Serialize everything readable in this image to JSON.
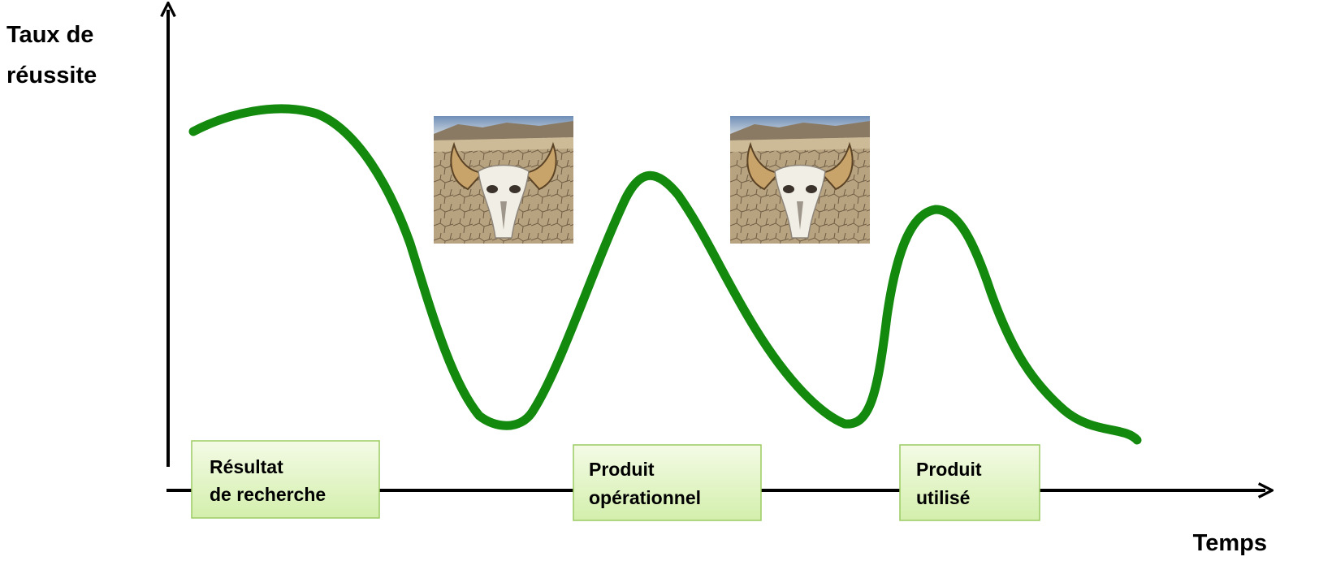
{
  "y_axis": {
    "label_lines": [
      "Taux de",
      "réussite"
    ]
  },
  "x_axis": {
    "label": "Temps"
  },
  "stages": [
    {
      "lines": [
        "Résultat",
        "de recherche"
      ]
    },
    {
      "lines": [
        "Produit",
        "opérationnel"
      ]
    },
    {
      "lines": [
        "Produit",
        "utilisé"
      ]
    }
  ]
}
